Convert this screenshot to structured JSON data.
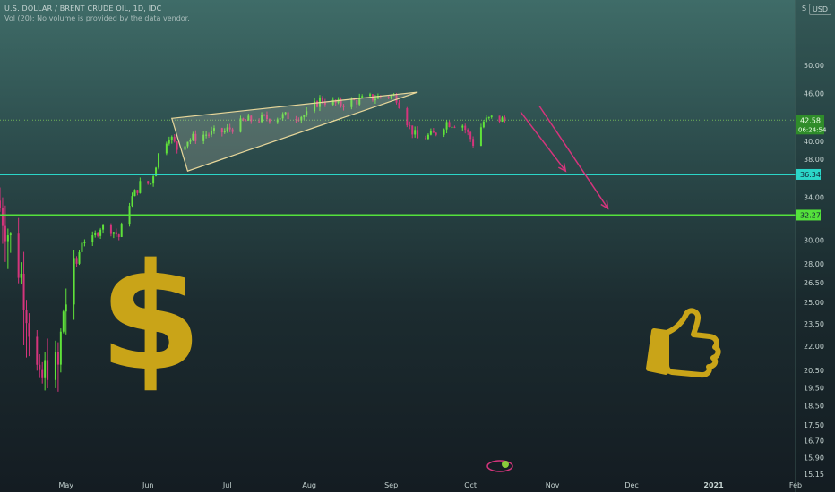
{
  "header": {
    "symbol_line": "U.S. DOLLAR / BRENT CRUDE OIL, 1D, IDC",
    "volume_note": "Vol (20): No volume is provided by the data vendor."
  },
  "scale": {
    "symbol": "S",
    "currency_button": "USD"
  },
  "colors": {
    "up": "#5fe23a",
    "down": "#d4357c",
    "support_cyan": "#2bd6c8",
    "support_green": "#54e13b",
    "wedge": "#e8d79a",
    "arrow": "#d4357c",
    "icon_gold": "#c9a418",
    "axis_text": "#c5d3d1",
    "price_line": "#7fc95a"
  },
  "chart_data": {
    "type": "candlestick",
    "y_axis": {
      "side": "right",
      "scale": "log",
      "range": [
        15.15,
        58.6
      ],
      "ticks": [
        50.0,
        46.0,
        40.0,
        38.0,
        34.0,
        30.0,
        28.0,
        26.5,
        25.0,
        23.5,
        22.0,
        20.5,
        19.5,
        18.5,
        17.5,
        16.7,
        15.9,
        15.15
      ],
      "tick_labels": [
        "50.00",
        "46.00",
        "40.00",
        "38.00",
        "34.00",
        "30.00",
        "28.00",
        "26.50",
        "25.00",
        "23.50",
        "22.00",
        "20.50",
        "19.50",
        "18.50",
        "17.50",
        "16.70",
        "15.90",
        "15.15"
      ]
    },
    "x_axis": {
      "range": [
        "2020-04-06",
        "2021-02-01"
      ],
      "ticks": [
        {
          "date": "2020-05-01",
          "label": "May"
        },
        {
          "date": "2020-06-01",
          "label": "Jun"
        },
        {
          "date": "2020-07-01",
          "label": "Jul"
        },
        {
          "date": "2020-08-01",
          "label": "Aug"
        },
        {
          "date": "2020-09-01",
          "label": "Sep"
        },
        {
          "date": "2020-10-01",
          "label": "Oct"
        },
        {
          "date": "2020-11-01",
          "label": "Nov"
        },
        {
          "date": "2020-12-01",
          "label": "Dec"
        },
        {
          "date": "2021-01-01",
          "label": "2021"
        },
        {
          "date": "2021-02-01",
          "label": "Feb"
        }
      ]
    },
    "current_price": {
      "value": 42.58,
      "label": "42.58",
      "countdown": "06:24:54"
    },
    "levels": [
      {
        "value": 36.34,
        "label": "36.34",
        "color_key": "support_cyan"
      },
      {
        "value": 32.27,
        "label": "32.27",
        "color_key": "support_green"
      }
    ],
    "wedge": [
      {
        "date": "2020-06-10",
        "value": 42.8
      },
      {
        "date": "2020-09-11",
        "value": 46.2
      },
      {
        "date": "2020-06-16",
        "value": 36.7
      }
    ],
    "arrows": [
      {
        "from": {
          "date": "2020-10-20",
          "value": 43.6
        },
        "to": {
          "date": "2020-11-06",
          "value": 36.7
        }
      },
      {
        "from": {
          "date": "2020-10-27",
          "value": 44.4
        },
        "to": {
          "date": "2020-11-22",
          "value": 32.9
        }
      }
    ],
    "anchors": [
      [
        "2020-04-06",
        33.0
      ],
      [
        "2020-04-10",
        30.0
      ],
      [
        "2020-04-14",
        27.0
      ],
      [
        "2020-04-17",
        23.5
      ],
      [
        "2020-04-21",
        19.4
      ],
      [
        "2020-04-24",
        21.0
      ],
      [
        "2020-04-28",
        20.6
      ],
      [
        "2020-04-30",
        24.5
      ],
      [
        "2020-05-04",
        27.0
      ],
      [
        "2020-05-07",
        30.0
      ],
      [
        "2020-05-11",
        30.0
      ],
      [
        "2020-05-14",
        31.2
      ],
      [
        "2020-05-18",
        31.0
      ],
      [
        "2020-05-21",
        30.3
      ],
      [
        "2020-05-25",
        33.5
      ],
      [
        "2020-05-29",
        35.3
      ],
      [
        "2020-06-02",
        35.4
      ],
      [
        "2020-06-05",
        38.5
      ],
      [
        "2020-06-09",
        40.8
      ],
      [
        "2020-06-12",
        39.2
      ],
      [
        "2020-06-16",
        40.2
      ],
      [
        "2020-06-22",
        40.8
      ],
      [
        "2020-06-30",
        41.2
      ],
      [
        "2020-07-08",
        42.5
      ],
      [
        "2020-07-20",
        43.0
      ],
      [
        "2020-07-31",
        43.2
      ],
      [
        "2020-08-05",
        45.2
      ],
      [
        "2020-08-12",
        44.6
      ],
      [
        "2020-08-24",
        45.4
      ],
      [
        "2020-08-31",
        45.8
      ],
      [
        "2020-09-03",
        45.5
      ],
      [
        "2020-09-08",
        41.7
      ],
      [
        "2020-09-11",
        40.3
      ],
      [
        "2020-09-17",
        40.8
      ],
      [
        "2020-09-22",
        42.3
      ],
      [
        "2020-09-28",
        42.0
      ],
      [
        "2020-10-02",
        39.8
      ],
      [
        "2020-10-06",
        42.4
      ],
      [
        "2020-10-09",
        42.8
      ],
      [
        "2020-10-14",
        42.58
      ]
    ]
  }
}
